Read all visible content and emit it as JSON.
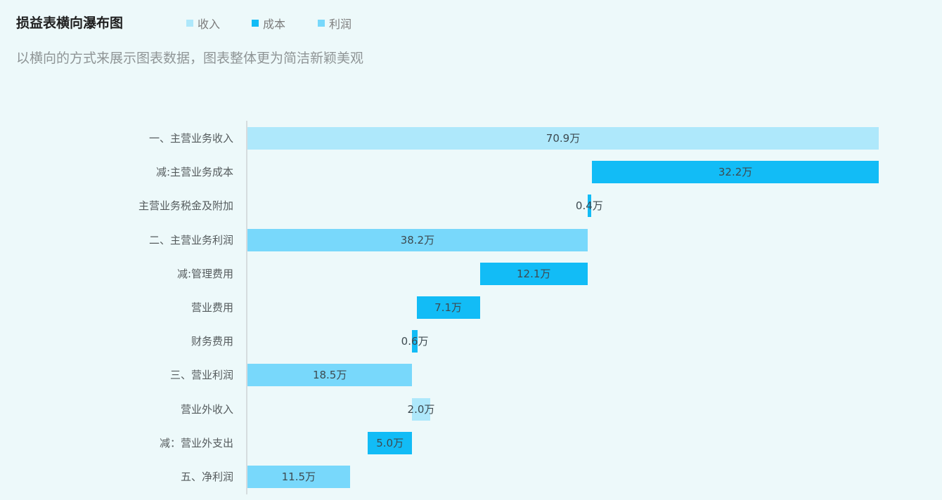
{
  "header": {
    "title": "损益表横向瀑布图",
    "subtitle": "以横向的方式来展示图表数据，图表整体更为简洁新颖美观"
  },
  "legend": [
    {
      "label": "收入",
      "color": "#aee8fb",
      "icon": "square-icon"
    },
    {
      "label": "成本",
      "color": "#12bcf6",
      "icon": "square-icon"
    },
    {
      "label": "利润",
      "color": "#78d8fb",
      "icon": "square-icon"
    }
  ],
  "colors": {
    "income": "#aee8fb",
    "cost": "#12bcf6",
    "profit": "#78d8fb",
    "background": "#edf9fa",
    "axis": "#d6dcde"
  },
  "chart_data": {
    "type": "bar",
    "subtype": "horizontal-waterfall",
    "title": "损益表横向瀑布图",
    "subtitle": "以横向的方式来展示图表数据，图表整体更为简洁新颖美观",
    "unit": "万",
    "legend_position": "top",
    "grid": false,
    "xlim": [
      0,
      70.9
    ],
    "categories": [
      "一、主营业务收入",
      "减:主营业务成本",
      "主营业务税金及附加",
      "二、主营业务利润",
      "减:管理费用",
      "营业费用",
      "财务费用",
      "三、营业利润",
      "营业外收入",
      "减：营业外支出",
      "五、净利润"
    ],
    "bars": [
      {
        "category": "一、主营业务收入",
        "type": "收入",
        "start": 0,
        "end": 70.9,
        "value": 70.9,
        "label": "70.9万"
      },
      {
        "category": "减:主营业务成本",
        "type": "成本",
        "start": 38.7,
        "end": 70.9,
        "value": 32.2,
        "label": "32.2万"
      },
      {
        "category": "主营业务税金及附加",
        "type": "成本",
        "start": 38.2,
        "end": 38.6,
        "value": 0.4,
        "label": "0.4万"
      },
      {
        "category": "二、主营业务利润",
        "type": "利润",
        "start": 0,
        "end": 38.2,
        "value": 38.2,
        "label": "38.2万"
      },
      {
        "category": "减:管理费用",
        "type": "成本",
        "start": 26.1,
        "end": 38.2,
        "value": 12.1,
        "label": "12.1万"
      },
      {
        "category": "营业费用",
        "type": "成本",
        "start": 19.0,
        "end": 26.1,
        "value": 7.1,
        "label": "7.1万"
      },
      {
        "category": "财务费用",
        "type": "成本",
        "start": 18.5,
        "end": 19.1,
        "value": 0.6,
        "label": "0.6万"
      },
      {
        "category": "三、营业利润",
        "type": "利润",
        "start": 0,
        "end": 18.5,
        "value": 18.5,
        "label": "18.5万"
      },
      {
        "category": "营业外收入",
        "type": "收入",
        "start": 18.5,
        "end": 20.5,
        "value": 2.0,
        "label": "2.0万"
      },
      {
        "category": "减：营业外支出",
        "type": "成本",
        "start": 13.5,
        "end": 18.5,
        "value": 5.0,
        "label": "5.0万"
      },
      {
        "category": "五、净利润",
        "type": "利润",
        "start": 0,
        "end": 11.5,
        "value": 11.5,
        "label": "11.5万"
      }
    ],
    "series": [
      {
        "name": "收入",
        "values": [
          70.9,
          null,
          null,
          null,
          null,
          null,
          null,
          null,
          2.0,
          null,
          null
        ]
      },
      {
        "name": "成本",
        "values": [
          null,
          32.2,
          0.4,
          null,
          12.1,
          7.1,
          0.6,
          null,
          null,
          5.0,
          null
        ]
      },
      {
        "name": "利润",
        "values": [
          null,
          null,
          null,
          38.2,
          null,
          null,
          null,
          18.5,
          null,
          null,
          11.5
        ]
      }
    ]
  }
}
